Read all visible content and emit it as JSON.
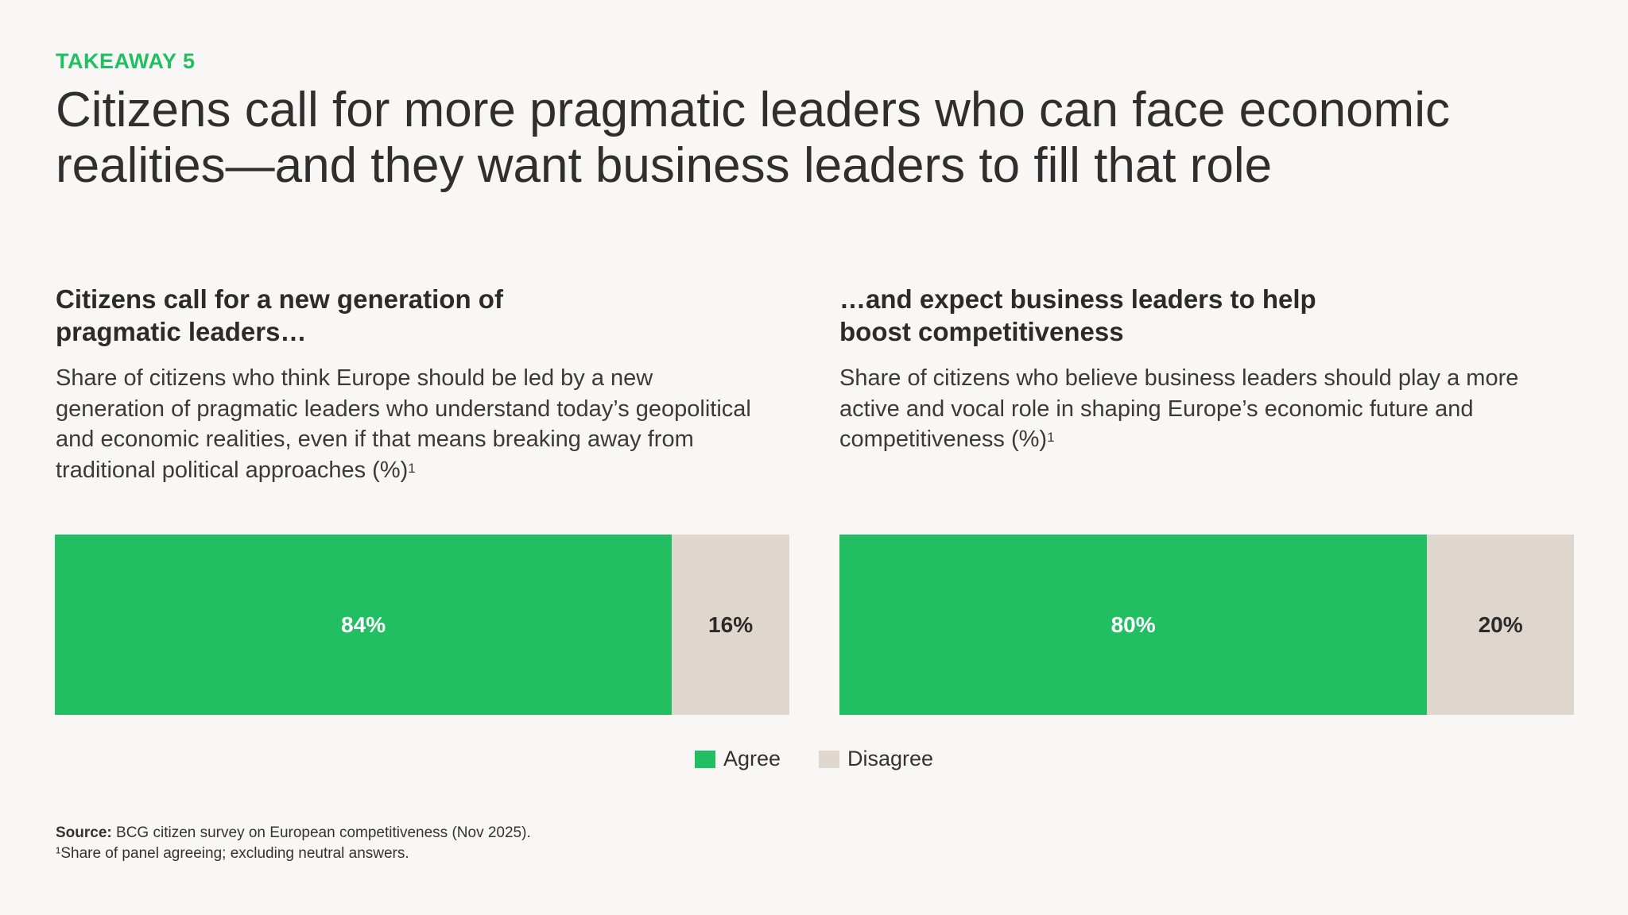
{
  "eyebrow": "TAKEAWAY 5",
  "headline": "Citizens call for more pragmatic leaders who can face economic realities—and they want business leaders to fill that role",
  "colors": {
    "agree": "#21bf61",
    "disagree": "#dfd7ce",
    "accent": "#21bf61"
  },
  "left": {
    "title": "Citizens call for a new generation of pragmatic leaders…",
    "description": "Share of citizens who think Europe should be led by a new generation of pragmatic leaders who understand today’s geopolitical and economic realities, even if that means breaking away from traditional political approaches (%)",
    "footnote_mark": "1"
  },
  "right": {
    "title": "…and expect business leaders to help boost competitiveness",
    "description": "Share of citizens who believe business leaders should play a more active and vocal role in shaping Europe’s economic future and competitiveness (%)",
    "footnote_mark": "1"
  },
  "chart_data": [
    {
      "type": "bar",
      "orientation": "horizontal-stacked",
      "series": [
        {
          "name": "Agree",
          "values": [
            84
          ],
          "label": "84%"
        },
        {
          "name": "Disagree",
          "values": [
            16
          ],
          "label": "16%"
        }
      ]
    },
    {
      "type": "bar",
      "orientation": "horizontal-stacked",
      "series": [
        {
          "name": "Agree",
          "values": [
            80
          ],
          "label": "80%"
        },
        {
          "name": "Disagree",
          "values": [
            20
          ],
          "label": "20%"
        }
      ]
    }
  ],
  "legend": {
    "agree": "Agree",
    "disagree": "Disagree"
  },
  "footer": {
    "source_label": "Source:",
    "source_text": " BCG citizen survey on European competitiveness (Nov 2025).",
    "footnote": "¹Share of panel agreeing; excluding neutral answers."
  }
}
